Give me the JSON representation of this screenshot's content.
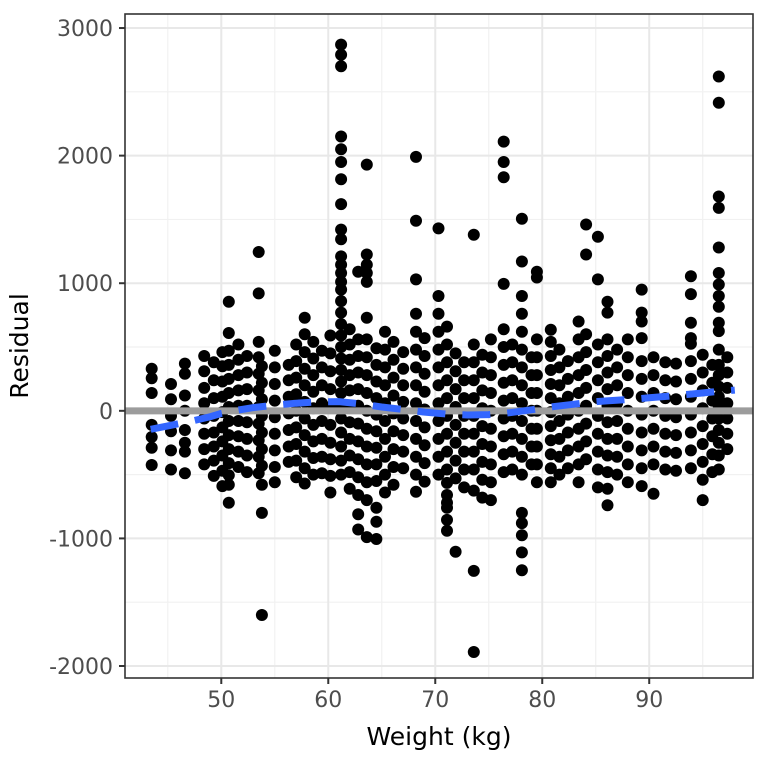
{
  "chart_data": {
    "type": "scatter",
    "title": "",
    "xlabel": "Weight (kg)",
    "ylabel": "Residual",
    "xlim": [
      41.0,
      99.7
    ],
    "ylim": [
      -2094,
      3110
    ],
    "grid": "on",
    "legend": "none",
    "x_major_ticks": [
      50,
      60,
      70,
      80,
      90
    ],
    "x_minor_ticks": [
      45,
      55,
      65,
      75,
      85,
      95
    ],
    "y_major_ticks": [
      3000,
      2000,
      1000,
      0,
      -1000,
      -2000
    ],
    "y_minor_ticks": [
      2500,
      1500,
      500,
      -500,
      -1500
    ],
    "x_tick_labels": [
      "50",
      "60",
      "70",
      "80",
      "90"
    ],
    "y_tick_labels": [
      "3000",
      "2000",
      "1000",
      "0",
      "-1000",
      "-2000"
    ],
    "point_color": "#000000",
    "zero_line": {
      "y": 0,
      "color": "#9c9c9c"
    },
    "smoother": {
      "style": "dashed",
      "color": "#3366FF",
      "points": [
        [
          43.4,
          -145
        ],
        [
          45,
          -118
        ],
        [
          47,
          -85
        ],
        [
          49,
          -45
        ],
        [
          50,
          -20
        ],
        [
          51.5,
          5
        ],
        [
          53,
          25
        ],
        [
          55,
          45
        ],
        [
          57,
          60
        ],
        [
          59,
          70
        ],
        [
          61,
          72
        ],
        [
          63,
          55
        ],
        [
          65,
          30
        ],
        [
          67,
          10
        ],
        [
          69,
          -10
        ],
        [
          71,
          -25
        ],
        [
          73,
          -33
        ],
        [
          75,
          -30
        ],
        [
          77,
          -15
        ],
        [
          79,
          8
        ],
        [
          81,
          32
        ],
        [
          83,
          52
        ],
        [
          84.5,
          68
        ],
        [
          86,
          78
        ],
        [
          88,
          88
        ],
        [
          90,
          102
        ],
        [
          92,
          116
        ],
        [
          94,
          132
        ],
        [
          96,
          148
        ],
        [
          98,
          162
        ]
      ]
    },
    "columns": [
      {
        "w": 43.5,
        "r": [
          330,
          255,
          140,
          -110,
          -205,
          -290,
          -425
        ]
      },
      {
        "w": 45.3,
        "r": [
          210,
          90,
          -40,
          -160,
          -310,
          -460
        ]
      },
      {
        "w": 46.6,
        "r": [
          370,
          290,
          120,
          0,
          -150,
          -250,
          -320,
          -490
        ]
      },
      {
        "w": 48.4,
        "r": [
          430,
          310,
          180,
          60,
          -60,
          -180,
          -300,
          -420
        ]
      },
      {
        "w": 49.3,
        "r": [
          380,
          240,
          100,
          -40,
          -170,
          -280,
          -390,
          -510
        ]
      },
      {
        "w": 50.1,
        "r": [
          460,
          350,
          230,
          110,
          -10,
          -130,
          -240,
          -350,
          -470,
          -590
        ]
      },
      {
        "w": 50.7,
        "r": [
          855,
          610,
          470,
          360,
          250,
          140,
          30,
          -80,
          -190,
          -300,
          -410,
          -505,
          -580,
          -720
        ]
      },
      {
        "w": 51.6,
        "r": [
          520,
          400,
          280,
          160,
          40,
          -80,
          -200,
          -320,
          -440
        ]
      },
      {
        "w": 52.4,
        "r": [
          430,
          300,
          170,
          40,
          -90,
          -220,
          -350,
          -480
        ]
      },
      {
        "w": 53.5,
        "r": [
          1245,
          920,
          540,
          420,
          290,
          160,
          30,
          -100,
          -230,
          -360,
          -490
        ]
      },
      {
        "w": 53.8,
        "r": [
          350,
          220,
          90,
          -40,
          -170,
          -300,
          -430,
          -580,
          -800,
          -1600
        ]
      },
      {
        "w": 55.0,
        "r": [
          470,
          340,
          210,
          80,
          -50,
          -180,
          -310,
          -440,
          -560
        ]
      },
      {
        "w": 56.3,
        "r": [
          360,
          240,
          110,
          -20,
          -150,
          -280,
          -400
        ]
      },
      {
        "w": 57.0,
        "r": [
          520,
          390,
          260,
          130,
          0,
          -130,
          -260,
          -390,
          -520
        ]
      },
      {
        "w": 57.8,
        "r": [
          730,
          600,
          460,
          330,
          200,
          70,
          -60,
          -190,
          -320,
          -450,
          -570
        ]
      },
      {
        "w": 58.6,
        "r": [
          540,
          410,
          280,
          150,
          20,
          -110,
          -240,
          -370,
          -500
        ]
      },
      {
        "w": 59.4,
        "r": [
          470,
          340,
          200,
          60,
          -80,
          -220,
          -360,
          -490
        ]
      },
      {
        "w": 60.2,
        "r": [
          590,
          450,
          310,
          170,
          30,
          -110,
          -250,
          -380,
          -510,
          -640
        ]
      },
      {
        "w": 61.2,
        "r": [
          2870,
          2790,
          2700,
          2150,
          2050,
          1950,
          1815,
          1620,
          1420,
          1345,
          1210,
          1145,
          1080,
          1010,
          950,
          860,
          770,
          680,
          590,
          500,
          410,
          320,
          230,
          140,
          50,
          -60,
          -170,
          -280,
          -390,
          -500
        ]
      },
      {
        "w": 62.0,
        "r": [
          640,
          520,
          400,
          280,
          160,
          40,
          -90,
          -220,
          -350,
          -480,
          -610
        ]
      },
      {
        "w": 62.8,
        "r": [
          1090,
          560,
          430,
          300,
          170,
          40,
          -100,
          -240,
          -380,
          -520,
          -660,
          -810,
          -930
        ]
      },
      {
        "w": 63.6,
        "r": [
          1930,
          1225,
          1145,
          1080,
          1010,
          730,
          560,
          420,
          280,
          140,
          0,
          -140,
          -280,
          -420,
          -560,
          -700,
          -990
        ]
      },
      {
        "w": 64.5,
        "r": [
          490,
          360,
          230,
          100,
          -30,
          -160,
          -290,
          -420,
          -550,
          -760,
          -870,
          -1005
        ]
      },
      {
        "w": 65.3,
        "r": [
          620,
          480,
          340,
          200,
          60,
          -80,
          -220,
          -360,
          -500,
          -640
        ]
      },
      {
        "w": 66.1,
        "r": [
          540,
          400,
          260,
          120,
          -20,
          -160,
          -300,
          -440,
          -580
        ]
      },
      {
        "w": 67.0,
        "r": [
          460,
          330,
          200,
          70,
          -60,
          -190,
          -320,
          -450
        ]
      },
      {
        "w": 68.2,
        "r": [
          1990,
          1490,
          1030,
          760,
          620,
          480,
          340,
          200,
          60,
          -80,
          -220,
          -360,
          -500,
          -635
        ]
      },
      {
        "w": 69.0,
        "r": [
          570,
          430,
          290,
          150,
          10,
          -130,
          -270,
          -410,
          -555
        ]
      },
      {
        "w": 70.3,
        "r": [
          1430,
          900,
          760,
          620,
          480,
          340,
          200,
          60,
          -80,
          -220,
          -360,
          -500
        ]
      },
      {
        "w": 71.1,
        "r": [
          660,
          520,
          380,
          240,
          100,
          -40,
          -180,
          -320,
          -460,
          -565,
          -660,
          -720,
          -760,
          -855,
          -940
        ]
      },
      {
        "w": 71.9,
        "r": [
          450,
          310,
          170,
          30,
          -110,
          -250,
          -390,
          -530,
          -1105
        ]
      },
      {
        "w": 72.7,
        "r": [
          380,
          240,
          100,
          -40,
          -180,
          -320,
          -460,
          -600
        ]
      },
      {
        "w": 73.6,
        "r": [
          1380,
          520,
          380,
          240,
          100,
          -40,
          -180,
          -320,
          -460,
          -625,
          -1255,
          -1890
        ]
      },
      {
        "w": 74.4,
        "r": [
          440,
          300,
          160,
          20,
          -120,
          -260,
          -400,
          -540,
          -680
        ]
      },
      {
        "w": 75.2,
        "r": [
          560,
          420,
          280,
          140,
          0,
          -140,
          -280,
          -420,
          -560,
          -700
        ]
      },
      {
        "w": 76.4,
        "r": [
          2110,
          1950,
          1830,
          995,
          640,
          500,
          360,
          220,
          80,
          -60,
          -200,
          -340,
          -480
        ]
      },
      {
        "w": 77.2,
        "r": [
          520,
          380,
          240,
          100,
          -40,
          -180,
          -320,
          -460
        ]
      },
      {
        "w": 78.1,
        "r": [
          1505,
          1170,
          900,
          760,
          620,
          480,
          340,
          200,
          60,
          -80,
          -220,
          -360,
          -500,
          -800,
          -880,
          -975,
          -1110,
          -1250
        ]
      },
      {
        "w": 79.0,
        "r": [
          420,
          280,
          140,
          0,
          -140,
          -280,
          -420
        ]
      },
      {
        "w": 79.5,
        "r": [
          1090,
          1045,
          560,
          420,
          280,
          140,
          0,
          -140,
          -280,
          -420,
          -560
        ]
      },
      {
        "w": 80.8,
        "r": [
          635,
          540,
          430,
          320,
          210,
          100,
          -10,
          -120,
          -230,
          -340,
          -450,
          -560
        ]
      },
      {
        "w": 81.6,
        "r": [
          480,
          340,
          200,
          60,
          -80,
          -220,
          -360,
          -500
        ]
      },
      {
        "w": 82.4,
        "r": [
          390,
          250,
          110,
          -30,
          -170,
          -310,
          -450
        ]
      },
      {
        "w": 83.4,
        "r": [
          700,
          560,
          420,
          280,
          140,
          0,
          -140,
          -280,
          -420,
          -560
        ]
      },
      {
        "w": 84.1,
        "r": [
          1460,
          1225,
          600,
          460,
          320,
          180,
          40,
          -100,
          -240,
          -380
        ]
      },
      {
        "w": 85.2,
        "r": [
          1365,
          1030,
          520,
          380,
          240,
          100,
          -40,
          -180,
          -320,
          -460,
          -600
        ]
      },
      {
        "w": 86.1,
        "r": [
          855,
          770,
          560,
          430,
          300,
          170,
          40,
          -90,
          -220,
          -350,
          -480,
          -610,
          -740
        ]
      },
      {
        "w": 87.0,
        "r": [
          480,
          340,
          200,
          60,
          -80,
          -220,
          -360,
          -500
        ]
      },
      {
        "w": 88.0,
        "r": [
          560,
          420,
          280,
          140,
          0,
          -140,
          -280,
          -420,
          -560
        ]
      },
      {
        "w": 89.3,
        "r": [
          950,
          770,
          700,
          570,
          390,
          250,
          110,
          -30,
          -170,
          -310,
          -450,
          -590
        ]
      },
      {
        "w": 90.4,
        "r": [
          420,
          280,
          140,
          0,
          -140,
          -280,
          -420,
          -650
        ]
      },
      {
        "w": 91.5,
        "r": [
          380,
          240,
          100,
          -40,
          -180,
          -320,
          -460
        ]
      },
      {
        "w": 92.5,
        "r": [
          370,
          230,
          90,
          -50,
          -190,
          -330,
          -470
        ]
      },
      {
        "w": 93.9,
        "r": [
          1055,
          915,
          690,
          570,
          525,
          390,
          250,
          110,
          -30,
          -170,
          -310,
          -450
        ]
      },
      {
        "w": 95.0,
        "r": [
          440,
          300,
          160,
          20,
          -120,
          -260,
          -400,
          -540,
          -700
        ]
      },
      {
        "w": 95.9,
        "r": [
          360,
          220,
          80,
          -60,
          -200,
          -340,
          -480
        ]
      },
      {
        "w": 96.5,
        "r": [
          2620,
          2415,
          1680,
          1590,
          1280,
          1080,
          990,
          900,
          815,
          690,
          625,
          480,
          360,
          280,
          190,
          110,
          30,
          -60,
          -150,
          -250,
          -350,
          -460
        ]
      },
      {
        "w": 97.3,
        "r": [
          420,
          300,
          180,
          60,
          -60,
          -180,
          -300
        ]
      }
    ],
    "style": {
      "panel_border_color": "#333333",
      "grid_major_color": "#e8e8e8",
      "grid_minor_color": "#f1f1f1",
      "tick_color": "#333333",
      "tick_label_color": "#4d4d4d",
      "point_radius": 6,
      "zero_line_width": 7,
      "smoother_width": 7
    }
  }
}
